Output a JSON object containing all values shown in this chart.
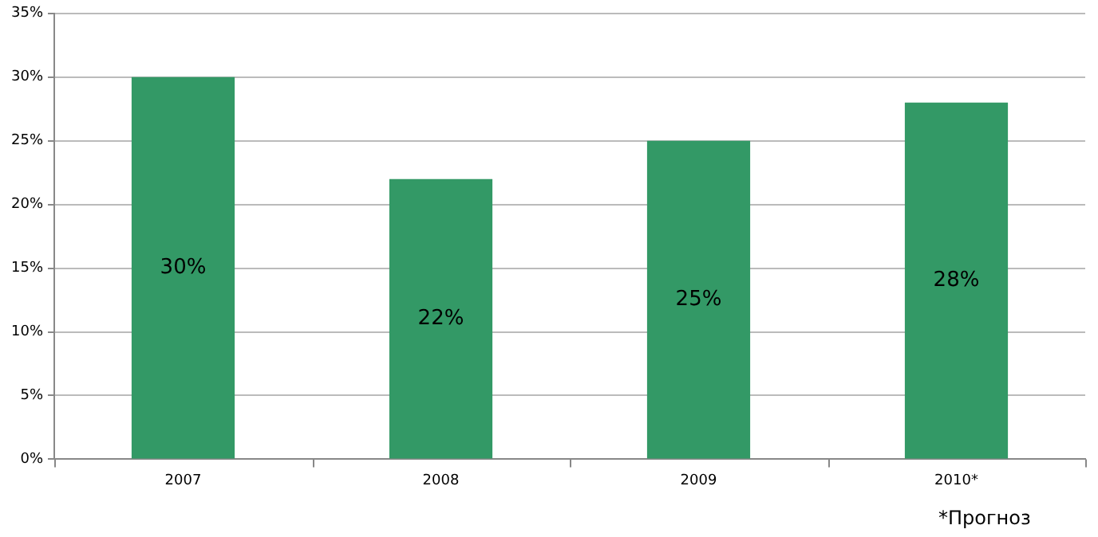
{
  "chart_data": {
    "type": "bar",
    "categories": [
      "2007",
      "2008",
      "2009",
      "2010*"
    ],
    "values": [
      30,
      22,
      25,
      28
    ],
    "color": "#339966",
    "value_labels": [
      "30%",
      "22%",
      "25%",
      "28%"
    ],
    "ylim": [
      0,
      35
    ],
    "yticks": [
      {
        "value": 0,
        "label": "0%"
      },
      {
        "value": 5,
        "label": "5%"
      },
      {
        "value": 10,
        "label": "10%"
      },
      {
        "value": 15,
        "label": "15%"
      },
      {
        "value": 20,
        "label": "20%"
      },
      {
        "value": 25,
        "label": "25%"
      },
      {
        "value": 30,
        "label": "30%"
      },
      {
        "value": 35,
        "label": "35%"
      }
    ],
    "grid": "y",
    "legend": false,
    "annotations": [
      "*Прогноз"
    ]
  }
}
